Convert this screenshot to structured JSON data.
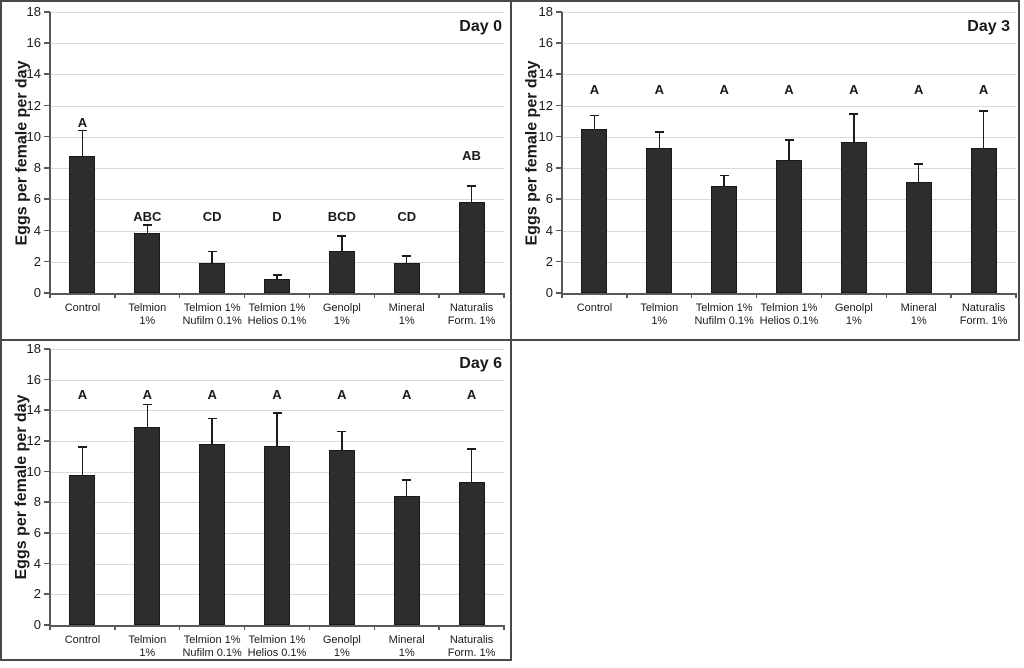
{
  "figure": {
    "background": "#ffffff",
    "panel_border_color": "#4a4a4a",
    "bar_color": "#2d2d2d",
    "bar_edge_color": "#191919",
    "grid_color": "#d9d9d9",
    "axis_color": "#595959",
    "error_color": "#1c1c1c",
    "text_color": "#1a1a1a",
    "yticks": [
      0,
      2,
      4,
      6,
      8,
      10,
      12,
      14,
      16,
      18
    ],
    "ylabel": "Eggs per female per day",
    "category_lines": [
      [
        "Control",
        ""
      ],
      [
        "Telmion",
        "1%"
      ],
      [
        "Telmion 1%",
        "Nufilm 0.1%"
      ],
      [
        "Telmion 1%",
        "Helios 0.1%"
      ],
      [
        "Genolpl",
        "1%"
      ],
      [
        "Mineral",
        "1%"
      ],
      [
        "Naturalis",
        "Form. 1%"
      ]
    ]
  },
  "chart_data": [
    {
      "type": "bar",
      "title": "Day 0",
      "ylabel": "Eggs per female per day",
      "xlabel": "",
      "ylim": [
        0,
        18
      ],
      "ytick_step": 2,
      "grid": true,
      "legend": "none",
      "categories": [
        "Control",
        "Telmion 1%",
        "Telmion 1% Nufilm 0.1%",
        "Telmion 1% Helios 0.1%",
        "Genolpl 1%",
        "Mineral 1%",
        "Naturalis Form. 1%"
      ],
      "values": [
        8.8,
        3.85,
        1.95,
        0.9,
        2.7,
        1.95,
        5.8
      ],
      "error_up": [
        1.6,
        0.5,
        0.7,
        0.25,
        0.95,
        0.4,
        1.05
      ],
      "sig_letters": [
        "A",
        "ABC",
        "CD",
        "D",
        "BCD",
        "CD",
        "AB"
      ],
      "sig_letter_y": [
        10.9,
        4.9,
        4.9,
        4.9,
        4.9,
        4.9,
        8.8
      ]
    },
    {
      "type": "bar",
      "title": "Day 3",
      "ylabel": "Eggs per female per day",
      "xlabel": "",
      "ylim": [
        0,
        18
      ],
      "ytick_step": 2,
      "grid": true,
      "legend": "none",
      "categories": [
        "Control",
        "Telmion 1%",
        "Telmion 1% Nufilm 0.1%",
        "Telmion 1% Helios 0.1%",
        "Genolpl 1%",
        "Mineral 1%",
        "Naturalis Form. 1%"
      ],
      "values": [
        10.5,
        9.3,
        6.85,
        8.5,
        9.65,
        7.1,
        9.3
      ],
      "error_up": [
        0.85,
        1.0,
        0.65,
        1.3,
        1.8,
        1.15,
        2.35
      ],
      "sig_letters": [
        "A",
        "A",
        "A",
        "A",
        "A",
        "A",
        "A"
      ],
      "sig_letter_y": [
        13,
        13,
        13,
        13,
        13,
        13,
        13
      ]
    },
    {
      "type": "bar",
      "title": "Day 6",
      "ylabel": "Eggs per female per day",
      "xlabel": "",
      "ylim": [
        0,
        18
      ],
      "ytick_step": 2,
      "grid": true,
      "legend": "none",
      "categories": [
        "Control",
        "Telmion 1%",
        "Telmion 1% Nufilm 0.1%",
        "Telmion 1% Helios 0.1%",
        "Genolpl 1%",
        "Mineral 1%",
        "Naturalis Form. 1%"
      ],
      "values": [
        9.8,
        12.9,
        11.8,
        11.65,
        11.4,
        8.4,
        9.3
      ],
      "error_up": [
        1.8,
        1.45,
        1.65,
        2.15,
        1.2,
        1.05,
        2.15
      ],
      "sig_letters": [
        "A",
        "A",
        "A",
        "A",
        "A",
        "A",
        "A"
      ],
      "sig_letter_y": [
        15,
        15,
        15,
        15,
        15,
        15,
        15
      ]
    }
  ]
}
